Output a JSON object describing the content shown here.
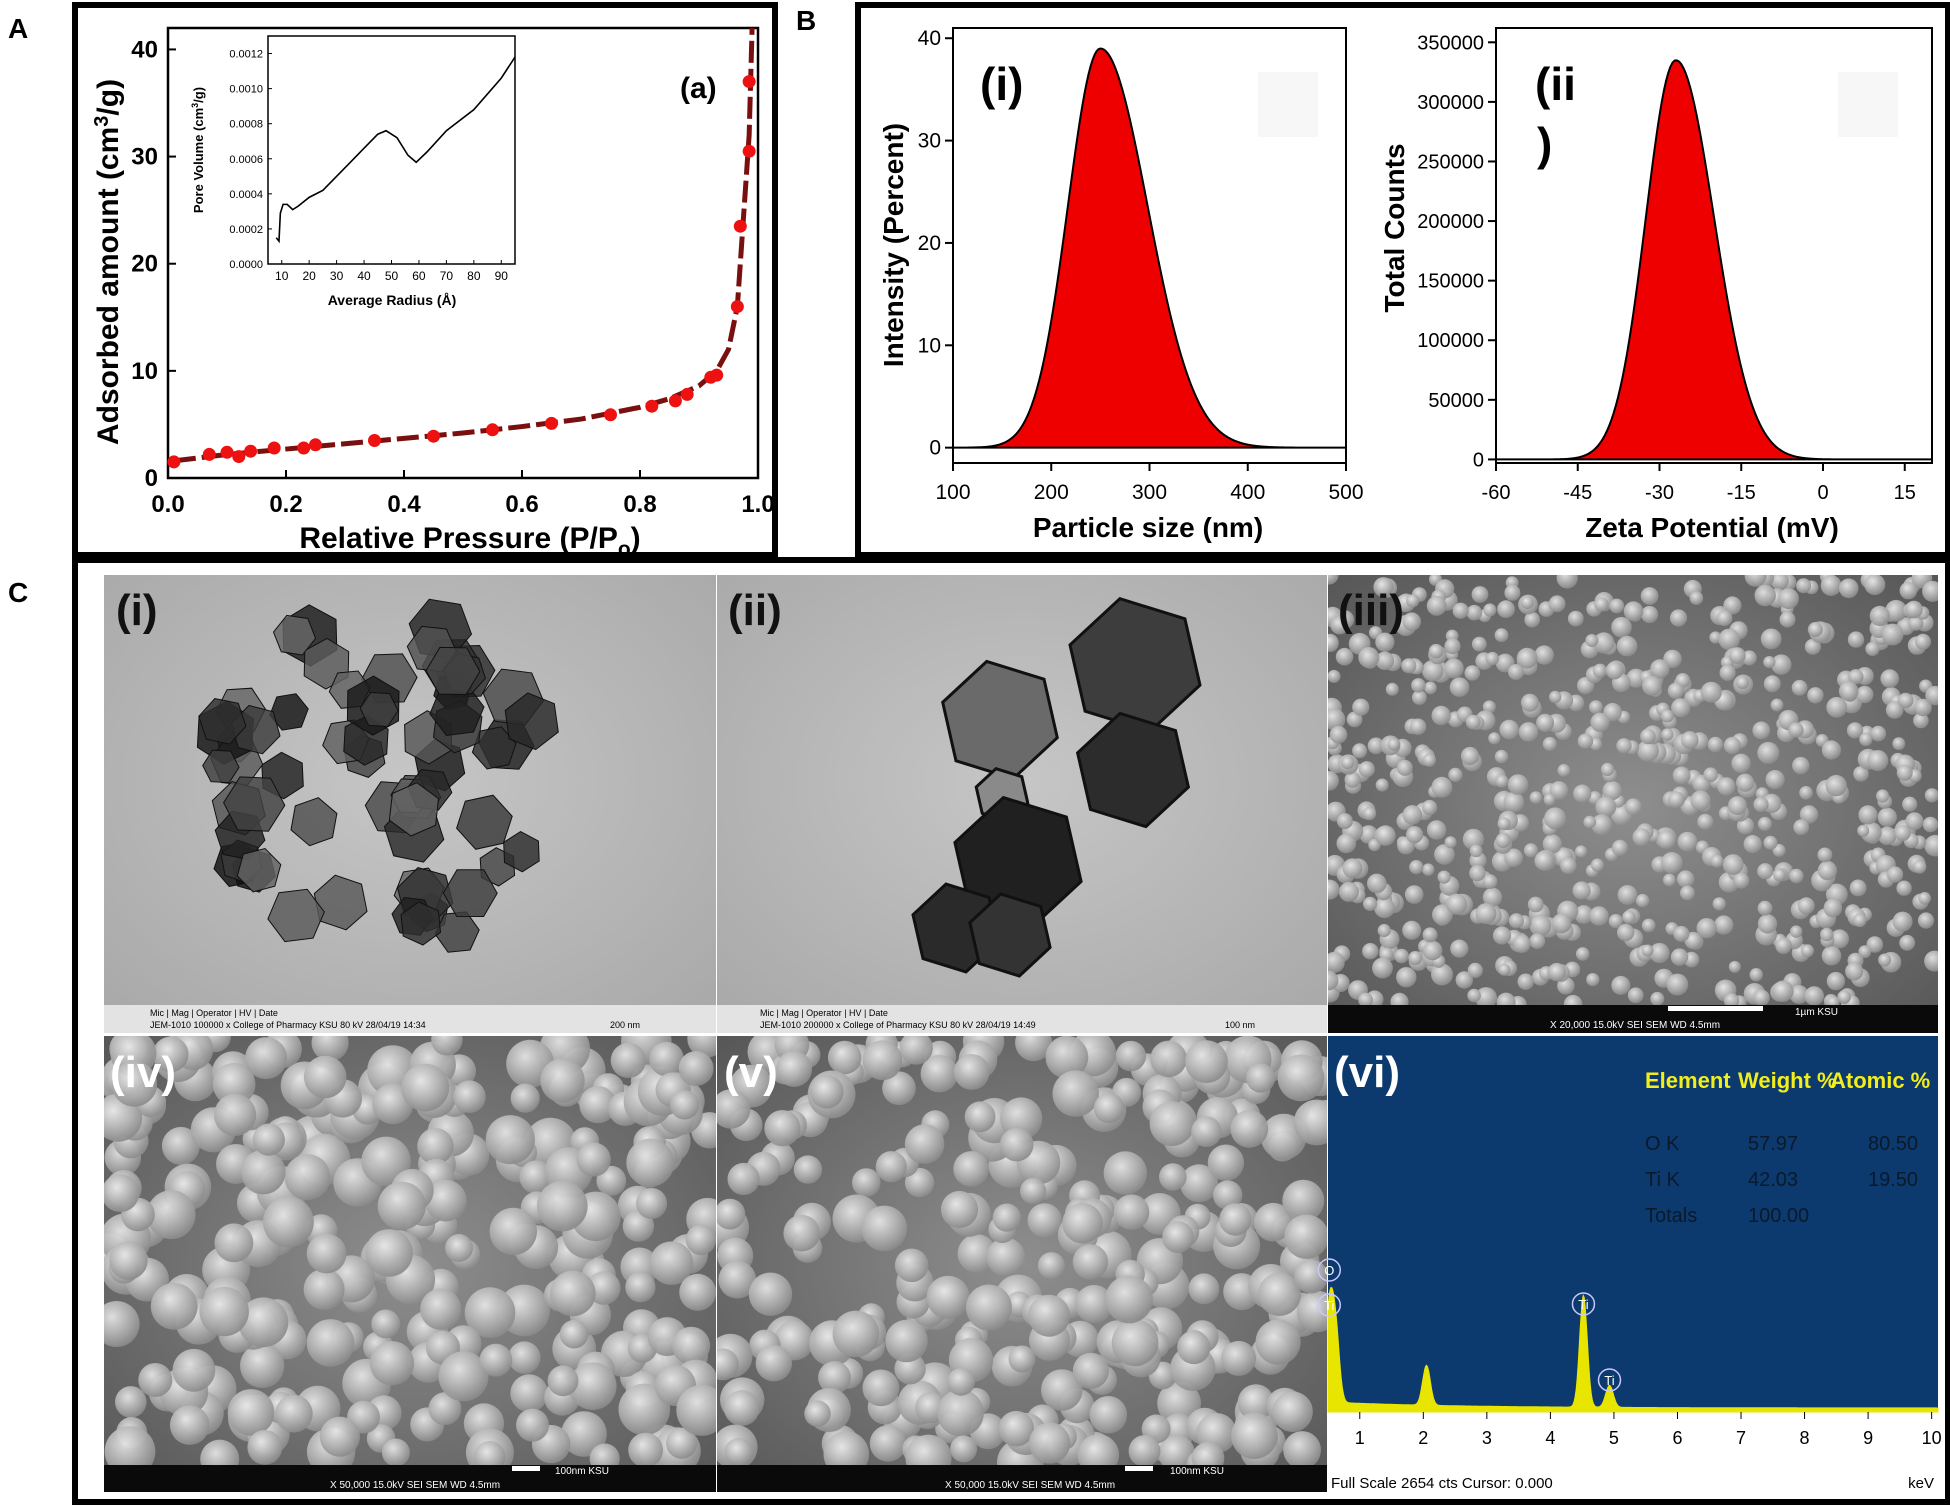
{
  "panel_letters": {
    "a": "A",
    "b": "B",
    "c": "C"
  },
  "chart_data": [
    {
      "id": "A-main",
      "type": "scatter",
      "panel_tag": "(a)",
      "xlabel": "Relative Pressure (P/P",
      "xlabel_sub": "o",
      "xlabel_close": ")",
      "ylabel": "Adsorbed amount (cm",
      "ylabel_sup": "3",
      "ylabel_close": "/g)",
      "xlim": [
        0,
        1.0
      ],
      "ylim": [
        0,
        42
      ],
      "xticks": [
        "0.0",
        "0.2",
        "0.4",
        "0.6",
        "0.8",
        "1.0"
      ],
      "yticks": [
        "0",
        "10",
        "20",
        "30",
        "40"
      ],
      "marker_color": "#ee1111",
      "line_color": "#7a0f0f",
      "points": [
        [
          0.01,
          1.5
        ],
        [
          0.07,
          2.2
        ],
        [
          0.1,
          2.4
        ],
        [
          0.12,
          2.0
        ],
        [
          0.14,
          2.5
        ],
        [
          0.18,
          2.8
        ],
        [
          0.23,
          2.8
        ],
        [
          0.25,
          3.1
        ],
        [
          0.35,
          3.5
        ],
        [
          0.45,
          3.9
        ],
        [
          0.55,
          4.5
        ],
        [
          0.65,
          5.1
        ],
        [
          0.75,
          5.9
        ],
        [
          0.82,
          6.7
        ],
        [
          0.86,
          7.2
        ],
        [
          0.88,
          7.8
        ],
        [
          0.92,
          9.4
        ],
        [
          0.93,
          9.6
        ],
        [
          0.965,
          16
        ],
        [
          0.97,
          23.5
        ],
        [
          0.985,
          30.5
        ],
        [
          0.985,
          37
        ]
      ],
      "fit_curve": [
        [
          0.01,
          1.6
        ],
        [
          0.1,
          2.2
        ],
        [
          0.2,
          2.7
        ],
        [
          0.3,
          3.2
        ],
        [
          0.4,
          3.7
        ],
        [
          0.5,
          4.2
        ],
        [
          0.6,
          4.8
        ],
        [
          0.7,
          5.5
        ],
        [
          0.8,
          6.6
        ],
        [
          0.85,
          7.4
        ],
        [
          0.9,
          8.6
        ],
        [
          0.93,
          10
        ],
        [
          0.95,
          12
        ],
        [
          0.965,
          16
        ],
        [
          0.975,
          24
        ],
        [
          0.985,
          32
        ],
        [
          0.99,
          42
        ]
      ]
    },
    {
      "id": "A-inset",
      "type": "line",
      "xlabel": "Average Radius (Å)",
      "ylabel": "Pore Volume (cm",
      "ylabel_sup": "3",
      "ylabel_close": "/g)",
      "xlim": [
        5,
        95
      ],
      "ylim": [
        0,
        0.0013
      ],
      "xticks": [
        "10",
        "20",
        "30",
        "40",
        "50",
        "60",
        "70",
        "80",
        "90"
      ],
      "yticks": [
        "0.0000",
        "0.0002",
        "0.0004",
        "0.0006",
        "0.0008",
        "0.0010",
        "0.0012"
      ],
      "points": [
        [
          8,
          0.00015
        ],
        [
          9,
          0.00013
        ],
        [
          9.5,
          0.00029
        ],
        [
          10.5,
          0.00034
        ],
        [
          12,
          0.00034
        ],
        [
          14,
          0.00031
        ],
        [
          16,
          0.00033
        ],
        [
          20,
          0.00038
        ],
        [
          25,
          0.00042
        ],
        [
          30,
          0.0005
        ],
        [
          35,
          0.00058
        ],
        [
          40,
          0.00066
        ],
        [
          45,
          0.00074
        ],
        [
          48,
          0.00076
        ],
        [
          52,
          0.00072
        ],
        [
          56,
          0.00062
        ],
        [
          59,
          0.00058
        ],
        [
          63,
          0.00064
        ],
        [
          70,
          0.00076
        ],
        [
          80,
          0.00088
        ],
        [
          90,
          0.00106
        ],
        [
          95,
          0.00118
        ]
      ]
    },
    {
      "id": "B-i",
      "type": "area",
      "panel_tag": "(i)",
      "xlabel": "Particle size (nm)",
      "ylabel": "Intensity (Percent)",
      "xlim": [
        100,
        500
      ],
      "ylim": [
        -1.5,
        41
      ],
      "xticks": [
        "100",
        "200",
        "300",
        "400",
        "500"
      ],
      "yticks": [
        "0",
        "10",
        "20",
        "30",
        "40"
      ],
      "fill_color": "#ee0000",
      "peak": {
        "x": 250,
        "y": 39,
        "sigma_left": 33,
        "sigma_right": 48
      }
    },
    {
      "id": "B-ii",
      "type": "area",
      "panel_tag": "(ii",
      "panel_tag_close": ")",
      "xlabel": "Zeta Potential (mV)",
      "ylabel": "Total Counts",
      "xlim": [
        -60,
        20
      ],
      "ylim": [
        -3000,
        362000
      ],
      "xticks": [
        "-60",
        "-45",
        "-30",
        "-15",
        "0",
        "15"
      ],
      "yticks": [
        "0",
        "50000",
        "100000",
        "150000",
        "200000",
        "250000",
        "300000",
        "350000"
      ],
      "fill_color": "#ee0000",
      "peak": {
        "x": -27,
        "y": 335000,
        "sigma_left": 5.5,
        "sigma_right": 7
      }
    },
    {
      "id": "C-vi",
      "type": "line",
      "panel_tag": "(vi)",
      "xlabel": "keV",
      "xlim": [
        0.5,
        10.1
      ],
      "xticks": [
        "1",
        "2",
        "3",
        "4",
        "5",
        "6",
        "7",
        "8",
        "9",
        "10"
      ],
      "footer": "Full Scale 2654 cts Cursor: 0.000",
      "peak_labels": [
        "O",
        "Ti",
        "Ti",
        "Ti"
      ],
      "table": {
        "headers": [
          "Element",
          "Weight %",
          "Atomic %"
        ],
        "rows": [
          [
            "O K",
            "57.97",
            "80.50"
          ],
          [
            "Ti K",
            "42.03",
            "19.50"
          ],
          [
            "Totals",
            "100.00",
            ""
          ]
        ]
      },
      "background_color": "#0c3a6e",
      "spectrum_color": "#e8e600"
    }
  ],
  "micrographs": [
    {
      "tag": "(i)",
      "footer": "Mic | Mag | Operator | HV | Date",
      "footer2": "JEM-1010 100000 x College of Pharmacy KSU 80 kV 28/04/19 14:34",
      "scale": "200 nm"
    },
    {
      "tag": "(ii)",
      "footer": "Mic | Mag | Operator | HV | Date",
      "footer2": "JEM-1010 200000 x College of Pharmacy KSU 80 kV 28/04/19 14:49",
      "scale": "100 nm"
    },
    {
      "tag": "(iii)",
      "footer": "X 20,000   15.0kV SEI   SEM   WD 4.5mm",
      "scale": "1µm KSU"
    },
    {
      "tag": "(iv)",
      "footer": "X 50,000   15.0kV SEI   SEM   WD 4.5mm",
      "scale": "100nm KSU"
    },
    {
      "tag": "(v)",
      "footer": "X 50,000   15.0kV SEI   SEM   WD 4.5mm",
      "scale": "100nm KSU"
    }
  ]
}
